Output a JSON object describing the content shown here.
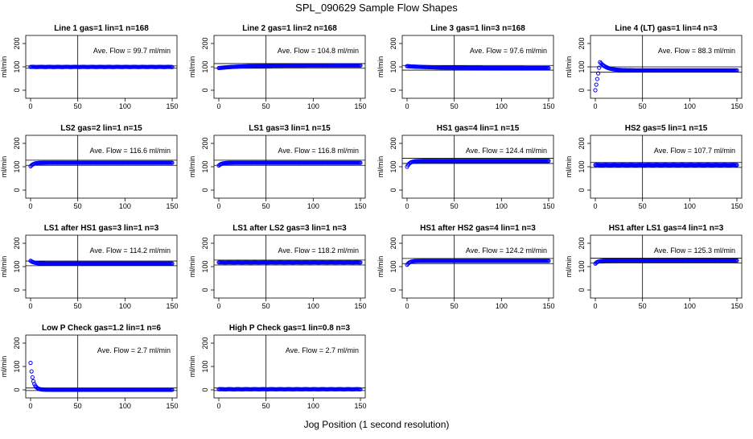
{
  "title": "SPL_090629  Sample Flow Shapes",
  "xlabel": "Jog Position (1 second resolution)",
  "point_color": "#0000ff",
  "chart_data": [
    {
      "type": "scatter",
      "title": "Line 1 gas=1 lin=1 n=168",
      "ylabel": "ml/min",
      "xlim": [
        0,
        150
      ],
      "ylim": [
        0,
        200
      ],
      "xticks": [
        0,
        50,
        100,
        150
      ],
      "yticks": [
        0,
        100,
        200
      ],
      "vline_x": 50,
      "hlines": [
        94,
        104
      ],
      "annotation": "Ave. Flow =  99.7  ml/min",
      "profile": {
        "kind": "flat",
        "start": 99.7,
        "end": 99.7,
        "mid": 99.7
      }
    },
    {
      "type": "scatter",
      "title": "Line 2 gas=1 lin=2 n=168",
      "ylabel": "ml/min",
      "xlim": [
        0,
        150
      ],
      "ylim": [
        0,
        200
      ],
      "xticks": [
        0,
        50,
        100,
        150
      ],
      "yticks": [
        0,
        100,
        200
      ],
      "vline_x": 50,
      "hlines": [
        94,
        114
      ],
      "annotation": "Ave. Flow =  104.8  ml/min",
      "profile": {
        "kind": "rise",
        "start": 95,
        "end": 106,
        "mid": 104.8
      }
    },
    {
      "type": "scatter",
      "title": "Line 3 gas=1 lin=3 n=168",
      "ylabel": "ml/min",
      "xlim": [
        0,
        150
      ],
      "ylim": [
        0,
        200
      ],
      "xticks": [
        0,
        50,
        100,
        150
      ],
      "yticks": [
        0,
        100,
        200
      ],
      "vline_x": 50,
      "hlines": [
        86,
        106
      ],
      "annotation": "Ave. Flow =  97.6  ml/min",
      "profile": {
        "kind": "fall",
        "start": 103,
        "end": 95,
        "mid": 97.6
      }
    },
    {
      "type": "scatter",
      "title": "Line 4 (LT) gas=1 lin=4 n=3",
      "ylabel": "ml/min",
      "xlim": [
        0,
        150
      ],
      "ylim": [
        0,
        200
      ],
      "xticks": [
        0,
        50,
        100,
        150
      ],
      "yticks": [
        0,
        100,
        200
      ],
      "vline_x": 50,
      "hlines": [
        77,
        100
      ],
      "annotation": "Ave. Flow =  88.3  ml/min",
      "profile": {
        "kind": "overshoot",
        "start": 0,
        "end": 85,
        "mid": 120
      }
    },
    {
      "type": "scatter",
      "title": "LS2 gas=2 lin=1 n=15",
      "ylabel": "ml/min",
      "xlim": [
        0,
        150
      ],
      "ylim": [
        0,
        200
      ],
      "xticks": [
        0,
        50,
        100,
        150
      ],
      "yticks": [
        0,
        100,
        200
      ],
      "vline_x": 50,
      "hlines": [
        106,
        128
      ],
      "annotation": "Ave. Flow =  116.6  ml/min",
      "profile": {
        "kind": "rise_quick",
        "start": 102,
        "end": 117,
        "mid": 116.6
      }
    },
    {
      "type": "scatter",
      "title": "LS1 gas=3 lin=1 n=15",
      "ylabel": "ml/min",
      "xlim": [
        0,
        150
      ],
      "ylim": [
        0,
        200
      ],
      "xticks": [
        0,
        50,
        100,
        150
      ],
      "yticks": [
        0,
        100,
        200
      ],
      "vline_x": 50,
      "hlines": [
        106,
        128
      ],
      "annotation": "Ave. Flow =  116.8  ml/min",
      "profile": {
        "kind": "rise_quick",
        "start": 105,
        "end": 117,
        "mid": 116.8
      }
    },
    {
      "type": "scatter",
      "title": "HS1 gas=4 lin=1 n=15",
      "ylabel": "ml/min",
      "xlim": [
        0,
        150
      ],
      "ylim": [
        0,
        200
      ],
      "xticks": [
        0,
        50,
        100,
        150
      ],
      "yticks": [
        0,
        100,
        200
      ],
      "vline_x": 50,
      "hlines": [
        114,
        136
      ],
      "annotation": "Ave. Flow =  124.4  ml/min",
      "profile": {
        "kind": "rise_quick",
        "start": 100,
        "end": 125,
        "mid": 124.4
      }
    },
    {
      "type": "scatter",
      "title": "HS2 gas=5 lin=1 n=15",
      "ylabel": "ml/min",
      "xlim": [
        0,
        150
      ],
      "ylim": [
        0,
        200
      ],
      "xticks": [
        0,
        50,
        100,
        150
      ],
      "yticks": [
        0,
        100,
        200
      ],
      "vline_x": 50,
      "hlines": [
        97,
        118
      ],
      "annotation": "Ave. Flow =  107.7  ml/min",
      "profile": {
        "kind": "flat",
        "start": 107.7,
        "end": 107.7,
        "mid": 107.7
      }
    },
    {
      "type": "scatter",
      "title": "LS1 after HS1 gas=3 lin=1 n=3",
      "ylabel": "ml/min",
      "xlim": [
        0,
        150
      ],
      "ylim": [
        0,
        200
      ],
      "xticks": [
        0,
        50,
        100,
        150
      ],
      "yticks": [
        0,
        100,
        200
      ],
      "vline_x": 50,
      "hlines": [
        104,
        124
      ],
      "annotation": "Ave. Flow =  114.2  ml/min",
      "profile": {
        "kind": "fall_quick",
        "start": 125,
        "end": 113,
        "mid": 114.2
      }
    },
    {
      "type": "scatter",
      "title": "LS1 after LS2 gas=3 lin=1 n=3",
      "ylabel": "ml/min",
      "xlim": [
        0,
        150
      ],
      "ylim": [
        0,
        200
      ],
      "xticks": [
        0,
        50,
        100,
        150
      ],
      "yticks": [
        0,
        100,
        200
      ],
      "vline_x": 50,
      "hlines": [
        107,
        128
      ],
      "annotation": "Ave. Flow =  118.2  ml/min",
      "profile": {
        "kind": "flat",
        "start": 118.2,
        "end": 118.2,
        "mid": 118.2
      }
    },
    {
      "type": "scatter",
      "title": "HS1 after HS2 gas=4 lin=1 n=3",
      "ylabel": "ml/min",
      "xlim": [
        0,
        150
      ],
      "ylim": [
        0,
        200
      ],
      "xticks": [
        0,
        50,
        100,
        150
      ],
      "yticks": [
        0,
        100,
        200
      ],
      "vline_x": 50,
      "hlines": [
        113,
        135
      ],
      "annotation": "Ave. Flow =  124.2  ml/min",
      "profile": {
        "kind": "rise_quick",
        "start": 108,
        "end": 125,
        "mid": 124.2
      }
    },
    {
      "type": "scatter",
      "title": "HS1 after LS1 gas=4 lin=1 n=3",
      "ylabel": "ml/min",
      "xlim": [
        0,
        150
      ],
      "ylim": [
        0,
        200
      ],
      "xticks": [
        0,
        50,
        100,
        150
      ],
      "yticks": [
        0,
        100,
        200
      ],
      "vline_x": 50,
      "hlines": [
        115,
        136
      ],
      "annotation": "Ave. Flow =  125.3  ml/min",
      "profile": {
        "kind": "rise_quick",
        "start": 113,
        "end": 126,
        "mid": 125.3
      }
    },
    {
      "type": "scatter",
      "title": "Low P Check gas=1.2 lin=1 n=6",
      "ylabel": "ml/min",
      "xlim": [
        0,
        150
      ],
      "ylim": [
        0,
        200
      ],
      "xticks": [
        0,
        50,
        100,
        150
      ],
      "yticks": [
        0,
        100,
        200
      ],
      "vline_x": 50,
      "hlines": [
        -3,
        8
      ],
      "annotation": "Ave. Flow =  2.7  ml/min",
      "profile": {
        "kind": "decay",
        "start": 115,
        "end": 0,
        "mid": 2.7
      }
    },
    {
      "type": "scatter",
      "title": "High P Check gas=1 lin=0.8 n=3",
      "ylabel": "ml/min",
      "xlim": [
        0,
        150
      ],
      "ylim": [
        0,
        200
      ],
      "xticks": [
        0,
        50,
        100,
        150
      ],
      "yticks": [
        0,
        100,
        200
      ],
      "vline_x": 50,
      "hlines": [
        -3,
        8
      ],
      "annotation": "Ave. Flow =  2.7  ml/min",
      "profile": {
        "kind": "flat",
        "start": 2.7,
        "end": 2.7,
        "mid": 2.7
      }
    }
  ]
}
